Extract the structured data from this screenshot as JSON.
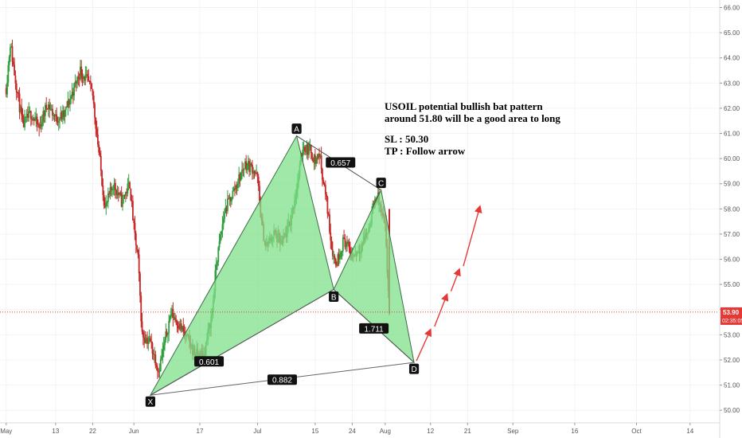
{
  "chart_data": {
    "type": "candlestick",
    "symbol": "USOIL",
    "y_range": [
      49.5,
      66.3
    ],
    "y_ticks": [
      "50.00",
      "51.00",
      "52.00",
      "53.00",
      "54.00",
      "55.00",
      "56.00",
      "57.00",
      "58.00",
      "59.00",
      "60.00",
      "61.00",
      "62.00",
      "63.00",
      "64.00",
      "65.00",
      "66.00"
    ],
    "x_ticks": [
      {
        "label": "May",
        "t": 0
      },
      {
        "label": "13",
        "t": 12
      },
      {
        "label": "22",
        "t": 21
      },
      {
        "label": "Jun",
        "t": 31
      },
      {
        "label": "17",
        "t": 47
      },
      {
        "label": "Jul",
        "t": 61
      },
      {
        "label": "15",
        "t": 75
      },
      {
        "label": "24",
        "t": 84
      },
      {
        "label": "Aug",
        "t": 92
      },
      {
        "label": "12",
        "t": 103
      },
      {
        "label": "21",
        "t": 112
      },
      {
        "label": "Sep",
        "t": 123
      },
      {
        "label": "16",
        "t": 138
      },
      {
        "label": "Oct",
        "t": 153
      },
      {
        "label": "14",
        "t": 166
      }
    ],
    "x_range": [
      -1.5,
      173
    ],
    "price_path": [
      [
        0,
        62.8
      ],
      [
        1,
        64.6
      ],
      [
        2,
        63.4
      ],
      [
        4,
        61.3
      ],
      [
        6,
        61.8
      ],
      [
        8,
        61.2
      ],
      [
        10,
        62.2
      ],
      [
        12,
        61.6
      ],
      [
        14,
        61.7
      ],
      [
        16,
        62.6
      ],
      [
        18,
        63.5
      ],
      [
        20,
        63.0
      ],
      [
        21,
        62.5
      ],
      [
        23,
        59.5
      ],
      [
        24,
        58.0
      ],
      [
        26,
        59.0
      ],
      [
        28,
        58.3
      ],
      [
        30,
        59.0
      ],
      [
        31,
        57.2
      ],
      [
        32,
        56.0
      ],
      [
        33,
        53.0
      ],
      [
        35,
        52.7
      ],
      [
        37,
        51.6
      ],
      [
        38,
        52.3
      ],
      [
        40,
        53.9
      ],
      [
        42,
        53.4
      ],
      [
        44,
        52.8
      ],
      [
        46,
        52.2
      ],
      [
        48,
        52.2
      ],
      [
        50,
        53.9
      ],
      [
        51,
        55.8
      ],
      [
        53,
        57.9
      ],
      [
        56,
        59.0
      ],
      [
        58,
        59.8
      ],
      [
        60,
        59.6
      ],
      [
        61,
        59.2
      ],
      [
        62,
        57.4
      ],
      [
        63,
        56.5
      ],
      [
        65,
        57.0
      ],
      [
        67,
        56.6
      ],
      [
        69,
        57.5
      ],
      [
        71,
        59.3
      ],
      [
        72,
        60.5
      ],
      [
        74,
        60.3
      ],
      [
        75,
        59.9
      ],
      [
        76,
        60.2
      ],
      [
        78,
        58.0
      ],
      [
        79,
        56.5
      ],
      [
        80,
        55.8
      ],
      [
        82,
        56.8
      ],
      [
        84,
        56.1
      ],
      [
        86,
        56.5
      ],
      [
        88,
        57.2
      ],
      [
        89,
        58.0
      ],
      [
        90,
        58.6
      ],
      [
        92,
        57.2
      ],
      [
        93,
        53.9
      ]
    ],
    "pattern": {
      "name": "bat",
      "X": {
        "t": 35,
        "p": 50.6
      },
      "A": {
        "t": 70.5,
        "p": 60.9
      },
      "B": {
        "t": 79.5,
        "p": 54.8
      },
      "C": {
        "t": 91,
        "p": 58.75
      },
      "D": {
        "t": 99,
        "p": 51.9
      },
      "labels": [
        "X",
        "A",
        "B",
        "C",
        "D"
      ],
      "ratios": {
        "XB": "0.601",
        "AC": "0.657",
        "BD": "1.711",
        "XD": "0.882"
      }
    },
    "current_price": "53.90",
    "countdown": "02:35:05",
    "forecast_arrow": [
      [
        99,
        51.9
      ],
      [
        103,
        53.2
      ],
      [
        107,
        54.6
      ],
      [
        110,
        55.6
      ],
      [
        115,
        58.1
      ]
    ]
  },
  "annotation": {
    "line1": "USOIL potential bullish bat pattern",
    "line2": "around 51.80 will be a good area to long",
    "line3": "SL : 50.30",
    "line4": "TP : Follow arrow"
  },
  "colors": {
    "bull": "#2e9e3c",
    "bear": "#c62828",
    "pattern_fill": "#7fe08a",
    "pattern_stroke": "#3c6e47",
    "price_line": "#e53935",
    "arrow": "#e53935",
    "grid": "#f0f3f6"
  }
}
